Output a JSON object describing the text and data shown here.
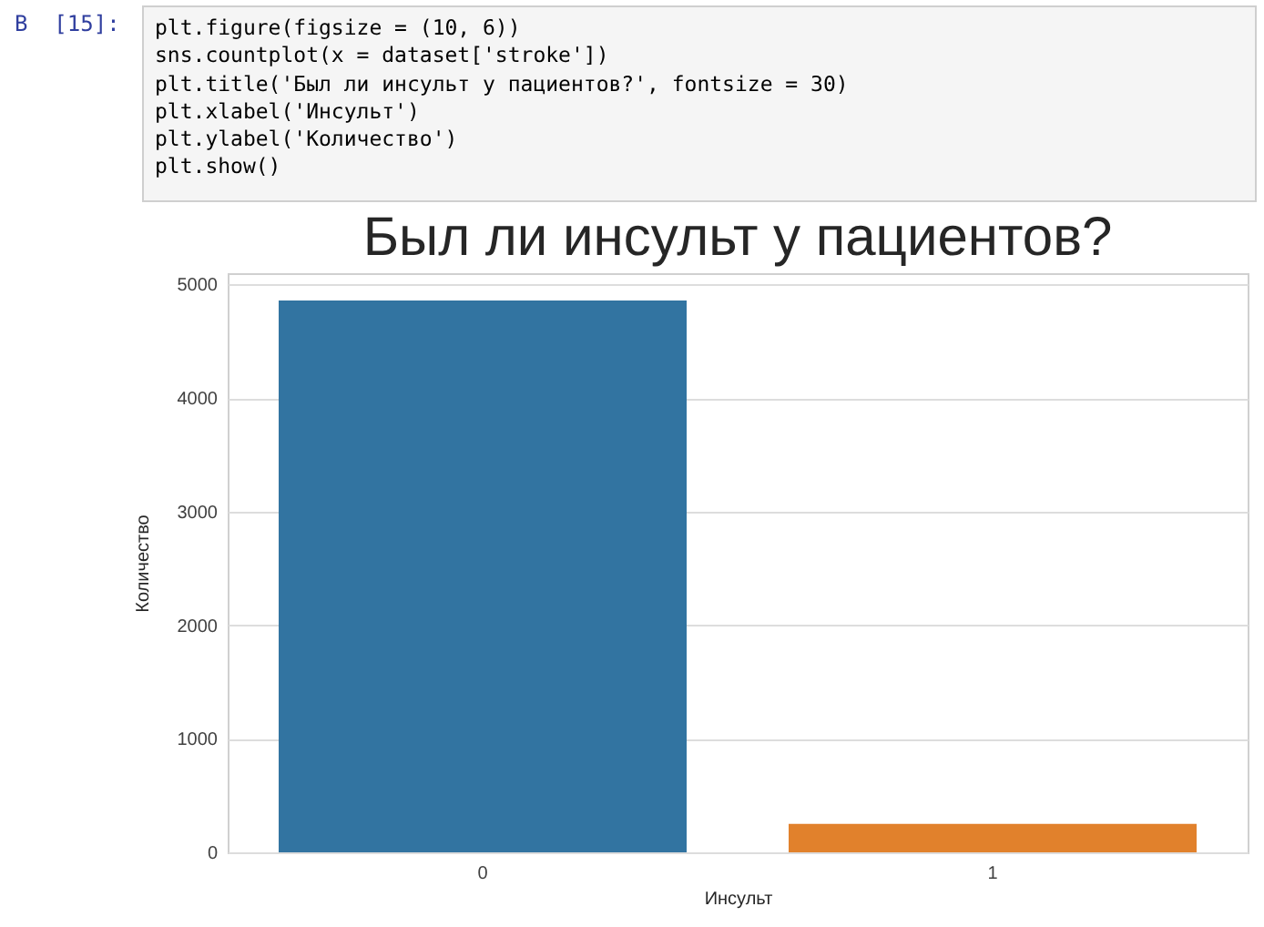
{
  "chart_data": {
    "type": "bar",
    "title": "Был ли инсульт у пациентов?",
    "xlabel": "Инсульт",
    "ylabel": "Количество",
    "categories": [
      "0",
      "1"
    ],
    "values": [
      4860,
      250
    ],
    "colors": [
      "#3274a1",
      "#e1812c"
    ],
    "ylim": [
      0,
      5100
    ],
    "yticks": [
      0,
      1000,
      2000,
      3000,
      4000,
      5000
    ],
    "grid": "y",
    "annotations": [
      "В  [15]:",
      "plt.figure(figsize = (10, 6))",
      "sns.countplot(x = dataset['stroke'])",
      "plt.title('Был ли инсульт у пациентов?', fontsize = 30)",
      "plt.xlabel('Инсульт')",
      "plt.ylabel('Количество')",
      "plt.show()"
    ]
  }
}
